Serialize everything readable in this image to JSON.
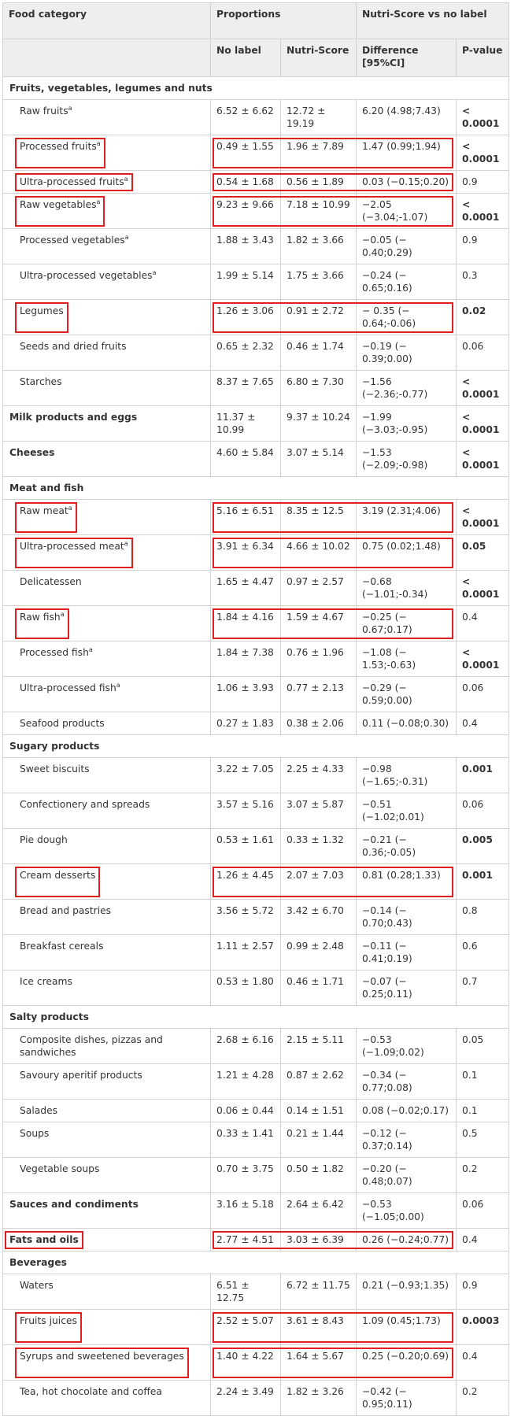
{
  "header": {
    "food_category": "Food category",
    "proportions": "Proportions",
    "comparison": "Nutri-Score vs no label",
    "no_label": "No label",
    "nutri_score": "Nutri-Score",
    "difference": "Difference [95%CI]",
    "p_value": "P-value"
  },
  "rows": [
    {
      "kind": "section",
      "label": "Fruits, vegetables, legumes and nuts"
    },
    {
      "kind": "item",
      "label": "Raw fruits",
      "sup": "a",
      "no_label": "6.52 ± 6.62",
      "nutri_score": "12.72 ± 19.19",
      "difference": "6.20 (4.98;7.43)",
      "p_value": "< 0.0001",
      "sig": true,
      "lines": 2
    },
    {
      "kind": "item",
      "label": "Processed fruits",
      "sup": "a",
      "no_label": "0.49 ± 1.55",
      "nutri_score": "1.96 ± 7.89",
      "difference": "1.47 (0.99;1.94)",
      "p_value": "< 0.0001",
      "sig": true,
      "lines": 2
    },
    {
      "kind": "item",
      "label": "Ultra-processed fruits",
      "sup": "a",
      "no_label": "0.54 ± 1.68",
      "nutri_score": "0.56 ± 1.89",
      "difference": "0.03 (−0.15;0.20)",
      "p_value": "0.9",
      "sig": false,
      "lines": 1
    },
    {
      "kind": "item",
      "label": "Raw vegetables",
      "sup": "a",
      "no_label": "9.23 ± 9.66",
      "nutri_score": "7.18 ± 10.99",
      "difference": "−2.05 (−3.04;-1.07)",
      "p_value": "< 0.0001",
      "sig": true,
      "lines": 2
    },
    {
      "kind": "item",
      "label": "Processed vegetables",
      "sup": "a",
      "no_label": "1.88 ± 3.43",
      "nutri_score": "1.82 ± 3.66",
      "difference": "−0.05 (− 0.40;0.29)",
      "p_value": "0.9",
      "sig": false,
      "lines": 1
    },
    {
      "kind": "item",
      "label": "Ultra-processed vegetables",
      "sup": "a",
      "no_label": "1.99 ± 5.14",
      "nutri_score": "1.75 ± 3.66",
      "difference": "−0.24 (− 0.65;0.16)",
      "p_value": "0.3",
      "sig": false,
      "lines": 1
    },
    {
      "kind": "item",
      "label": "Legumes",
      "sup": "",
      "no_label": "1.26 ± 3.06",
      "nutri_score": "0.91 ± 2.72",
      "difference": "− 0.35 (− 0.64;-0.06)",
      "p_value": "0.02",
      "sig": true,
      "lines": 2
    },
    {
      "kind": "item",
      "label": "Seeds and dried fruits",
      "sup": "",
      "no_label": "0.65 ± 2.32",
      "nutri_score": "0.46 ± 1.74",
      "difference": "−0.19 (− 0.39;0.00)",
      "p_value": "0.06",
      "sig": false,
      "lines": 1
    },
    {
      "kind": "item",
      "label": "Starches",
      "sup": "",
      "no_label": "8.37 ± 7.65",
      "nutri_score": "6.80 ± 7.30",
      "difference": "−1.56 (−2.36;-0.77)",
      "p_value": "< 0.0001",
      "sig": true,
      "lines": 2
    },
    {
      "kind": "group",
      "label": "Milk products and eggs",
      "no_label": "11.37 ± 10.99",
      "nutri_score": "9.37 ± 10.24",
      "difference": "−1.99 (−3.03;-0.95)",
      "p_value": "< 0.0001",
      "sig": true,
      "lines": 2
    },
    {
      "kind": "group",
      "label": "Cheeses",
      "no_label": "4.60 ± 5.84",
      "nutri_score": "3.07 ± 5.14",
      "difference": "−1.53 (−2.09;-0.98)",
      "p_value": "< 0.0001",
      "sig": true,
      "lines": 2
    },
    {
      "kind": "section",
      "label": "Meat and fish"
    },
    {
      "kind": "item",
      "label": "Raw meat",
      "sup": "a",
      "no_label": "5.16 ± 6.51",
      "nutri_score": "8.35 ± 12.5",
      "difference": "3.19 (2.31;4.06)",
      "p_value": "< 0.0001",
      "sig": true,
      "lines": 2
    },
    {
      "kind": "item",
      "label": "Ultra-processed meat",
      "sup": "a",
      "no_label": "3.91 ± 6.34",
      "nutri_score": "4.66 ± 10.02",
      "difference": "0.75 (0.02;1.48)",
      "p_value": "0.05",
      "sig": true,
      "lines": 2
    },
    {
      "kind": "item",
      "label": "Delicatessen",
      "sup": "",
      "no_label": "1.65 ± 4.47",
      "nutri_score": "0.97 ± 2.57",
      "difference": "−0.68 (−1.01;-0.34)",
      "p_value": "< 0.0001",
      "sig": true,
      "lines": 2
    },
    {
      "kind": "item",
      "label": "Raw fish",
      "sup": "a",
      "no_label": "1.84 ± 4.16",
      "nutri_score": "1.59 ± 4.67",
      "difference": "−0.25 (− 0.67;0.17)",
      "p_value": "0.4",
      "sig": false,
      "lines": 2
    },
    {
      "kind": "item",
      "label": "Processed fish",
      "sup": "a",
      "no_label": "1.84 ± 7.38",
      "nutri_score": "0.76 ± 1.96",
      "difference": "−1.08 (− 1.53;-0.63)",
      "p_value": "< 0.0001",
      "sig": true,
      "lines": 2
    },
    {
      "kind": "item",
      "label": "Ultra-processed fish",
      "sup": "a",
      "no_label": "1.06 ± 3.93",
      "nutri_score": "0.77 ± 2.13",
      "difference": "−0.29 (− 0.59;0.00)",
      "p_value": "0.06",
      "sig": false,
      "lines": 1
    },
    {
      "kind": "item",
      "label": "Seafood products",
      "sup": "",
      "no_label": "0.27 ± 1.83",
      "nutri_score": "0.38 ± 2.06",
      "difference": "0.11 (−0.08;0.30)",
      "p_value": "0.4",
      "sig": false,
      "lines": 1
    },
    {
      "kind": "section",
      "label": "Sugary products"
    },
    {
      "kind": "item",
      "label": "Sweet biscuits",
      "sup": "",
      "no_label": "3.22 ± 7.05",
      "nutri_score": "2.25 ± 4.33",
      "difference": "−0.98 (−1.65;-0.31)",
      "p_value": "0.001",
      "sig": true,
      "lines": 2
    },
    {
      "kind": "item",
      "label": "Confectionery and spreads",
      "sup": "",
      "no_label": "3.57 ± 5.16",
      "nutri_score": "3.07 ± 5.87",
      "difference": "−0.51 (−1.02;0.01)",
      "p_value": "0.06",
      "sig": false,
      "lines": 1
    },
    {
      "kind": "item",
      "label": "Pie dough",
      "sup": "",
      "no_label": "0.53 ± 1.61",
      "nutri_score": "0.33 ± 1.32",
      "difference": "−0.21 (− 0.36;-0.05)",
      "p_value": "0.005",
      "sig": true,
      "lines": 2
    },
    {
      "kind": "item",
      "label": "Cream desserts",
      "sup": "",
      "no_label": "1.26 ± 4.45",
      "nutri_score": "2.07 ± 7.03",
      "difference": "0.81 (0.28;1.33)",
      "p_value": "0.001",
      "sig": true,
      "lines": 2
    },
    {
      "kind": "item",
      "label": "Bread and pastries",
      "sup": "",
      "no_label": "3.56 ± 5.72",
      "nutri_score": "3.42 ± 6.70",
      "difference": "−0.14 (− 0.70;0.43)",
      "p_value": "0.8",
      "sig": false,
      "lines": 1
    },
    {
      "kind": "item",
      "label": "Breakfast cereals",
      "sup": "",
      "no_label": "1.11 ± 2.57",
      "nutri_score": "0.99 ± 2.48",
      "difference": "−0.11 (− 0.41;0.19)",
      "p_value": "0.6",
      "sig": false,
      "lines": 1
    },
    {
      "kind": "item",
      "label": "Ice creams",
      "sup": "",
      "no_label": "0.53 ± 1.80",
      "nutri_score": "0.46 ± 1.71",
      "difference": "−0.07 (− 0.25;0.11)",
      "p_value": "0.7",
      "sig": false,
      "lines": 1
    },
    {
      "kind": "section",
      "label": "Salty products"
    },
    {
      "kind": "item",
      "label": "Composite dishes, pizzas and sandwiches",
      "sup": "",
      "no_label": "2.68 ± 6.16",
      "nutri_score": "2.15 ± 5.11",
      "difference": "−0.53 (−1.09;0.02)",
      "p_value": "0.05",
      "sig": false,
      "lines": 2
    },
    {
      "kind": "item",
      "label": "Savoury aperitif products",
      "sup": "",
      "no_label": "1.21 ± 4.28",
      "nutri_score": "0.87 ± 2.62",
      "difference": "−0.34 (− 0.77;0.08)",
      "p_value": "0.1",
      "sig": false,
      "lines": 1
    },
    {
      "kind": "item",
      "label": "Salades",
      "sup": "",
      "no_label": "0.06 ± 0.44",
      "nutri_score": "0.14 ± 1.51",
      "difference": "0.08 (−0.02;0.17)",
      "p_value": "0.1",
      "sig": false,
      "lines": 1
    },
    {
      "kind": "item",
      "label": "Soups",
      "sup": "",
      "no_label": "0.33 ± 1.41",
      "nutri_score": "0.21 ± 1.44",
      "difference": "−0.12 (− 0.37;0.14)",
      "p_value": "0.5",
      "sig": false,
      "lines": 1
    },
    {
      "kind": "item",
      "label": "Vegetable soups",
      "sup": "",
      "no_label": "0.70 ± 3.75",
      "nutri_score": "0.50 ± 1.82",
      "difference": "−0.20 (− 0.48;0.07)",
      "p_value": "0.2",
      "sig": false,
      "lines": 1
    },
    {
      "kind": "group",
      "label": "Sauces and condiments",
      "no_label": "3.16 ± 5.18",
      "nutri_score": "2.64 ± 6.42",
      "difference": "−0.53 (−1.05;0.00)",
      "p_value": "0.06",
      "sig": false,
      "lines": 1
    },
    {
      "kind": "group",
      "label": "Fats and oils",
      "no_label": "2.77 ± 4.51",
      "nutri_score": "3.03 ± 6.39",
      "difference": "0.26 (−0.24;0.77)",
      "p_value": "0.4",
      "sig": false,
      "lines": 1
    },
    {
      "kind": "section",
      "label": "Beverages"
    },
    {
      "kind": "item",
      "label": "Waters",
      "sup": "",
      "no_label": "6.51 ± 12.75",
      "nutri_score": "6.72 ± 11.75",
      "difference": "0.21 (−0.93;1.35)",
      "p_value": "0.9",
      "sig": false,
      "lines": 1
    },
    {
      "kind": "item",
      "label": "Fruits juices",
      "sup": "",
      "no_label": "2.52 ± 5.07",
      "nutri_score": "3.61 ± 8.43",
      "difference": "1.09 (0.45;1.73)",
      "p_value": "0.0003",
      "sig": true,
      "lines": 2
    },
    {
      "kind": "item",
      "label": "Syrups and sweetened beverages",
      "sup": "",
      "no_label": "1.40 ± 4.22",
      "nutri_score": "1.64 ± 5.67",
      "difference": "0.25 (−0.20;0.69)",
      "p_value": "0.4",
      "sig": false,
      "lines": 2
    },
    {
      "kind": "item",
      "label": "Tea, hot chocolate and coffea",
      "sup": "",
      "no_label": "2.24 ± 3.49",
      "nutri_score": "1.82 ± 3.26",
      "difference": "−0.42 (− 0.95;0.11)",
      "p_value": "0.2",
      "sig": false,
      "lines": 1
    }
  ],
  "annotation_color": "#e02020",
  "highlighted_labels": [
    "Processed fruits",
    "Ultra-processed fruits",
    "Raw vegetables",
    "Legumes",
    "Raw meat",
    "Ultra-processed meat",
    "Raw fish",
    "Cream desserts",
    "Fats and oils",
    "Fruits juices",
    "Syrups and sweetened beverages"
  ],
  "highlighted_values": [
    "Processed fruits",
    "Ultra-processed fruits",
    "Raw vegetables",
    "Legumes",
    "Raw meat",
    "Ultra-processed meat",
    "Raw fish",
    "Cream desserts",
    "Fats and oils",
    "Fruits juices",
    "Syrups and sweetened beverages"
  ]
}
